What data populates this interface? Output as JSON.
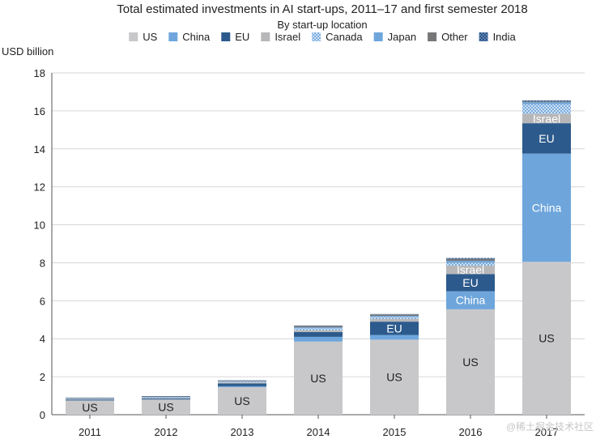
{
  "watermark": "@稀土掘金技术社区",
  "chart_data": {
    "type": "bar",
    "stacked": true,
    "title": "Total estimated investments in AI start-ups, 2011–17 and first semester 2018",
    "subtitle": "By start-up location",
    "ylabel": "USD billion",
    "xlabel": "",
    "ylim": [
      0,
      18
    ],
    "yticks": [
      0,
      2,
      4,
      6,
      8,
      10,
      12,
      14,
      16,
      18
    ],
    "grid": true,
    "legend_position": "top",
    "categories": [
      "2011",
      "2012",
      "2013",
      "2014",
      "2015",
      "2016",
      "2017"
    ],
    "series": [
      {
        "name": "US",
        "color": "#c8c8cb",
        "pattern": "solid",
        "values": [
          0.75,
          0.8,
          1.45,
          3.85,
          3.95,
          5.55,
          8.05
        ]
      },
      {
        "name": "China",
        "color": "#6ea6dc",
        "pattern": "solid",
        "values": [
          0.0,
          0.0,
          0.05,
          0.25,
          0.25,
          0.95,
          5.7
        ]
      },
      {
        "name": "EU",
        "color": "#2c5a8c",
        "pattern": "solid",
        "values": [
          0.05,
          0.05,
          0.15,
          0.25,
          0.7,
          0.9,
          1.6
        ]
      },
      {
        "name": "Israel",
        "color": "#b7b7b9",
        "pattern": "solid",
        "values": [
          0.03,
          0.04,
          0.05,
          0.1,
          0.15,
          0.45,
          0.5
        ]
      },
      {
        "name": "Canada",
        "color": "#9cc4ec",
        "pattern": "dots",
        "values": [
          0.02,
          0.03,
          0.04,
          0.1,
          0.1,
          0.15,
          0.5
        ]
      },
      {
        "name": "Japan",
        "color": "#6ea6dc",
        "pattern": "solid",
        "values": [
          0.01,
          0.02,
          0.02,
          0.05,
          0.05,
          0.1,
          0.1
        ]
      },
      {
        "name": "Other",
        "color": "#777779",
        "pattern": "solid",
        "values": [
          0.02,
          0.02,
          0.03,
          0.08,
          0.08,
          0.1,
          0.05
        ]
      },
      {
        "name": "India",
        "color": "#2c5a8c",
        "pattern": "dots",
        "values": [
          0.02,
          0.02,
          0.02,
          0.02,
          0.02,
          0.05,
          0.05
        ]
      }
    ],
    "segment_labels": [
      {
        "category": "2011",
        "series": "US",
        "text": "US",
        "color": "#222222"
      },
      {
        "category": "2012",
        "series": "US",
        "text": "US",
        "color": "#222222"
      },
      {
        "category": "2013",
        "series": "US",
        "text": "US",
        "color": "#222222"
      },
      {
        "category": "2014",
        "series": "US",
        "text": "US",
        "color": "#222222"
      },
      {
        "category": "2015",
        "series": "US",
        "text": "US",
        "color": "#222222"
      },
      {
        "category": "2015",
        "series": "EU",
        "text": "EU",
        "color": "#ffffff"
      },
      {
        "category": "2016",
        "series": "US",
        "text": "US",
        "color": "#222222"
      },
      {
        "category": "2016",
        "series": "China",
        "text": "China",
        "color": "#ffffff"
      },
      {
        "category": "2016",
        "series": "EU",
        "text": "EU",
        "color": "#ffffff"
      },
      {
        "category": "2016",
        "series": "Israel",
        "text": "Israel",
        "color": "#ffffff"
      },
      {
        "category": "2017",
        "series": "US",
        "text": "US",
        "color": "#222222"
      },
      {
        "category": "2017",
        "series": "China",
        "text": "China",
        "color": "#ffffff"
      },
      {
        "category": "2017",
        "series": "EU",
        "text": "EU",
        "color": "#ffffff"
      },
      {
        "category": "2017",
        "series": "Israel",
        "text": "Israel",
        "color": "#ffffff"
      }
    ]
  }
}
